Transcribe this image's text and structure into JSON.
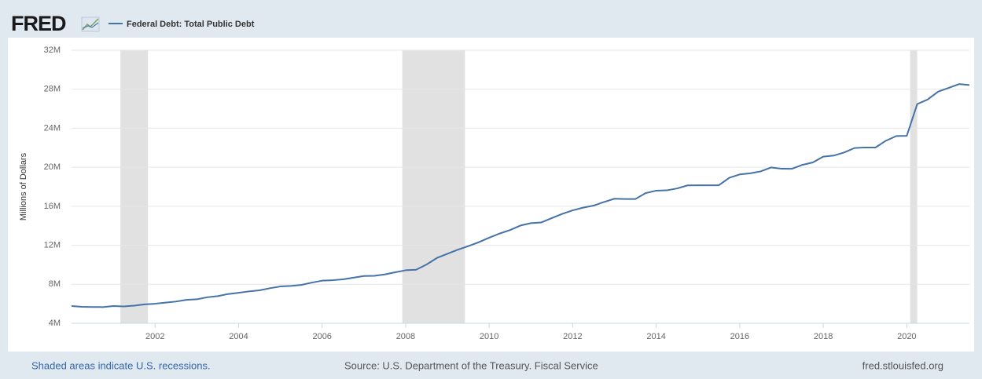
{
  "chart_data": {
    "type": "line",
    "logo": "FRED",
    "ylabel": "Millions of Dollars",
    "note": "Shaded areas indicate U.S. recessions.",
    "source": "Source: U.S. Department of the Treasury. Fiscal Service",
    "site": "fred.stlouisfed.org",
    "xlim": [
      2000.0,
      2021.5
    ],
    "xticks": [
      2002,
      2004,
      2006,
      2008,
      2010,
      2012,
      2014,
      2016,
      2018,
      2020
    ],
    "ylim": [
      4000000,
      32000000
    ],
    "yticks": [
      {
        "value": 4000000,
        "label": "4M"
      },
      {
        "value": 8000000,
        "label": "8M"
      },
      {
        "value": 12000000,
        "label": "12M"
      },
      {
        "value": 16000000,
        "label": "16M"
      },
      {
        "value": 20000000,
        "label": "20M"
      },
      {
        "value": 24000000,
        "label": "24M"
      },
      {
        "value": 28000000,
        "label": "28M"
      },
      {
        "value": 32000000,
        "label": "32M"
      }
    ],
    "grid": true,
    "recessions": [
      [
        2001.17,
        2001.83
      ],
      [
        2007.92,
        2009.42
      ],
      [
        2020.08,
        2020.25
      ]
    ],
    "recession_color": "#e1e1e1",
    "x": [
      2000.0,
      2000.25,
      2000.5,
      2000.75,
      2001.0,
      2001.25,
      2001.5,
      2001.75,
      2002.0,
      2002.25,
      2002.5,
      2002.75,
      2003.0,
      2003.25,
      2003.5,
      2003.75,
      2004.0,
      2004.25,
      2004.5,
      2004.75,
      2005.0,
      2005.25,
      2005.5,
      2005.75,
      2006.0,
      2006.25,
      2006.5,
      2006.75,
      2007.0,
      2007.25,
      2007.5,
      2007.75,
      2008.0,
      2008.25,
      2008.5,
      2008.75,
      2009.0,
      2009.25,
      2009.5,
      2009.75,
      2010.0,
      2010.25,
      2010.5,
      2010.75,
      2011.0,
      2011.25,
      2011.5,
      2011.75,
      2012.0,
      2012.25,
      2012.5,
      2012.75,
      2013.0,
      2013.25,
      2013.5,
      2013.75,
      2014.0,
      2014.25,
      2014.5,
      2014.75,
      2015.0,
      2015.25,
      2015.5,
      2015.75,
      2016.0,
      2016.25,
      2016.5,
      2016.75,
      2017.0,
      2017.25,
      2017.5,
      2017.75,
      2018.0,
      2018.25,
      2018.5,
      2018.75,
      2019.0,
      2019.25,
      2019.5,
      2019.75,
      2020.0,
      2020.25,
      2020.5,
      2020.75,
      2021.0,
      2021.25,
      2021.5
    ],
    "series": [
      {
        "name": "Federal Debt: Total Public Debt",
        "color": "#4572a7",
        "values": [
          5773000,
          5685000,
          5674000,
          5662000,
          5774000,
          5727000,
          5807000,
          5943000,
          6006000,
          6126000,
          6228000,
          6405000,
          6460000,
          6670000,
          6783000,
          7001000,
          7131000,
          7274000,
          7379000,
          7596000,
          7777000,
          7836000,
          7933000,
          8170000,
          8371000,
          8420000,
          8507000,
          8680000,
          8849000,
          8868000,
          9008000,
          9229000,
          9437000,
          9492000,
          10025000,
          10700000,
          11127000,
          11545000,
          11910000,
          12312000,
          12773000,
          13202000,
          13562000,
          14025000,
          14270000,
          14343000,
          14790000,
          15223000,
          15582000,
          15856000,
          16066000,
          16433000,
          16772000,
          16738000,
          16738000,
          17352000,
          17601000,
          17633000,
          17824000,
          18141000,
          18152000,
          18152000,
          18151000,
          18922000,
          19265000,
          19381000,
          19573000,
          19977000,
          19846000,
          19845000,
          20245000,
          20493000,
          21090000,
          21195000,
          21516000,
          21974000,
          22028000,
          22023000,
          22719000,
          23201000,
          23224000,
          26477000,
          26945000,
          27748000,
          28133000,
          28529000,
          28428000
        ]
      }
    ]
  }
}
